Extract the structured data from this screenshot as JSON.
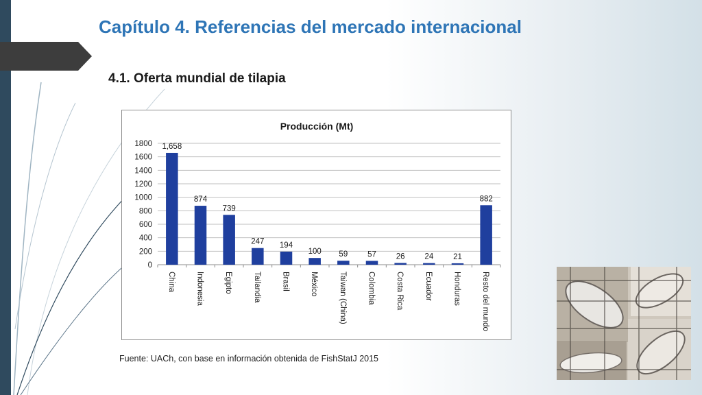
{
  "slide": {
    "title": "Capítulo 4.  Referencias del mercado internacional",
    "subtitle": "4.1. Oferta mundial de tilapia",
    "source": "Fuente: UACh, con base en información obtenida de FishStatJ 2015"
  },
  "theme": {
    "accent": "#2e75b6",
    "bar_color": "#1f3f9e",
    "left_bar": "#2f4a5e",
    "arrow": "#3d3d3d"
  },
  "chart_data": {
    "type": "bar",
    "title": "Producción (Mt)",
    "xlabel": "",
    "ylabel": "",
    "ylim": [
      0,
      1800
    ],
    "yticks": [
      0,
      200,
      400,
      600,
      800,
      1000,
      1200,
      1400,
      1600,
      1800
    ],
    "grid": true,
    "categories": [
      "China",
      "Indonesia",
      "Egipto",
      "Tailandia",
      "Brasil",
      "México",
      "Taiwan (China)",
      "Colombia",
      "Costa Rica",
      "Ecuador",
      "Honduras",
      "Resto del mundo"
    ],
    "values": [
      1658,
      874,
      739,
      247,
      194,
      100,
      59,
      57,
      26,
      24,
      21,
      882
    ],
    "data_labels": [
      "1,658",
      "874",
      "739",
      "247",
      "194",
      "100",
      "59",
      "57",
      "26",
      "24",
      "21",
      "882"
    ]
  },
  "image": {
    "description_icon": "tilapia-photo-collage"
  }
}
